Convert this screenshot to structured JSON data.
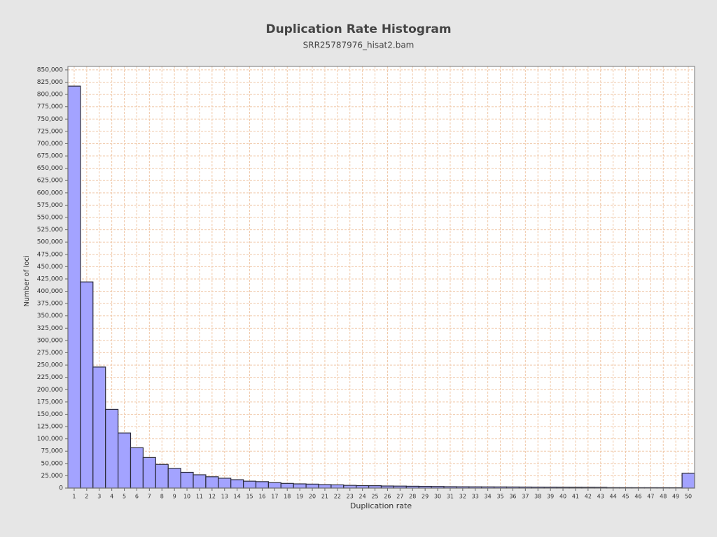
{
  "chart_data": {
    "type": "bar",
    "title": "Duplication Rate Histogram",
    "subtitle": "SRR25787976_hisat2.bam",
    "x_label": "Duplication rate",
    "y_label": "Number of loci",
    "categories": [
      1,
      2,
      3,
      4,
      5,
      6,
      7,
      8,
      9,
      10,
      11,
      12,
      13,
      14,
      15,
      16,
      17,
      18,
      19,
      20,
      21,
      22,
      23,
      24,
      25,
      26,
      27,
      28,
      29,
      30,
      31,
      32,
      33,
      34,
      35,
      36,
      37,
      38,
      39,
      40,
      41,
      42,
      43,
      44,
      45,
      46,
      47,
      48,
      49,
      50
    ],
    "values": [
      817000,
      419000,
      246000,
      160000,
      112000,
      82000,
      62000,
      48000,
      40000,
      32000,
      27000,
      23000,
      20000,
      17000,
      14000,
      13000,
      11000,
      9500,
      8500,
      8000,
      7000,
      6500,
      5500,
      5000,
      4800,
      4200,
      4000,
      3700,
      3500,
      3200,
      2800,
      2600,
      2500,
      2400,
      2300,
      2200,
      2100,
      2000,
      1900,
      1800,
      1700,
      1600,
      1500,
      900,
      850,
      800,
      800,
      750,
      700,
      30000
    ],
    "color": "#a3a3ff",
    "ylim": [
      0,
      857000
    ],
    "yticks": [
      0,
      {
        "value": 25000,
        "label": "25,000"
      },
      {
        "value": 50000,
        "label": "50,000"
      },
      {
        "value": 75000,
        "label": "75,000"
      },
      {
        "value": 100000,
        "label": "100,000"
      },
      {
        "value": 125000,
        "label": "125,000"
      },
      {
        "value": 150000,
        "label": "150,000"
      },
      {
        "value": 175000,
        "label": "175,000"
      },
      {
        "value": 200000,
        "label": "200,000"
      },
      {
        "value": 225000,
        "label": "225,000"
      },
      {
        "value": 250000,
        "label": "250,000"
      },
      {
        "value": 275000,
        "label": "275,000"
      },
      {
        "value": 300000,
        "label": "300,000"
      },
      {
        "value": 325000,
        "label": "325,000"
      },
      {
        "value": 350000,
        "label": "350,000"
      },
      {
        "value": 375000,
        "label": "375,000"
      },
      {
        "value": 400000,
        "label": "400,000"
      },
      {
        "value": 425000,
        "label": "425,000"
      },
      {
        "value": 450000,
        "label": "450,000"
      },
      {
        "value": 475000,
        "label": "475,000"
      },
      {
        "value": 500000,
        "label": "500,000"
      },
      {
        "value": 525000,
        "label": "525,000"
      },
      {
        "value": 550000,
        "label": "550,000"
      },
      {
        "value": 575000,
        "label": "575,000"
      },
      {
        "value": 600000,
        "label": "600,000"
      },
      {
        "value": 625000,
        "label": "625,000"
      },
      {
        "value": 650000,
        "label": "650,000"
      },
      {
        "value": 675000,
        "label": "675,000"
      },
      {
        "value": 700000,
        "label": "700,000"
      },
      {
        "value": 725000,
        "label": "725,000"
      },
      {
        "value": 750000,
        "label": "750,000"
      },
      {
        "value": 775000,
        "label": "775,000"
      },
      {
        "value": 800000,
        "label": "800,000"
      },
      {
        "value": 825000,
        "label": "825,000"
      },
      {
        "value": 850000,
        "label": "850,000"
      }
    ],
    "grid": true
  }
}
